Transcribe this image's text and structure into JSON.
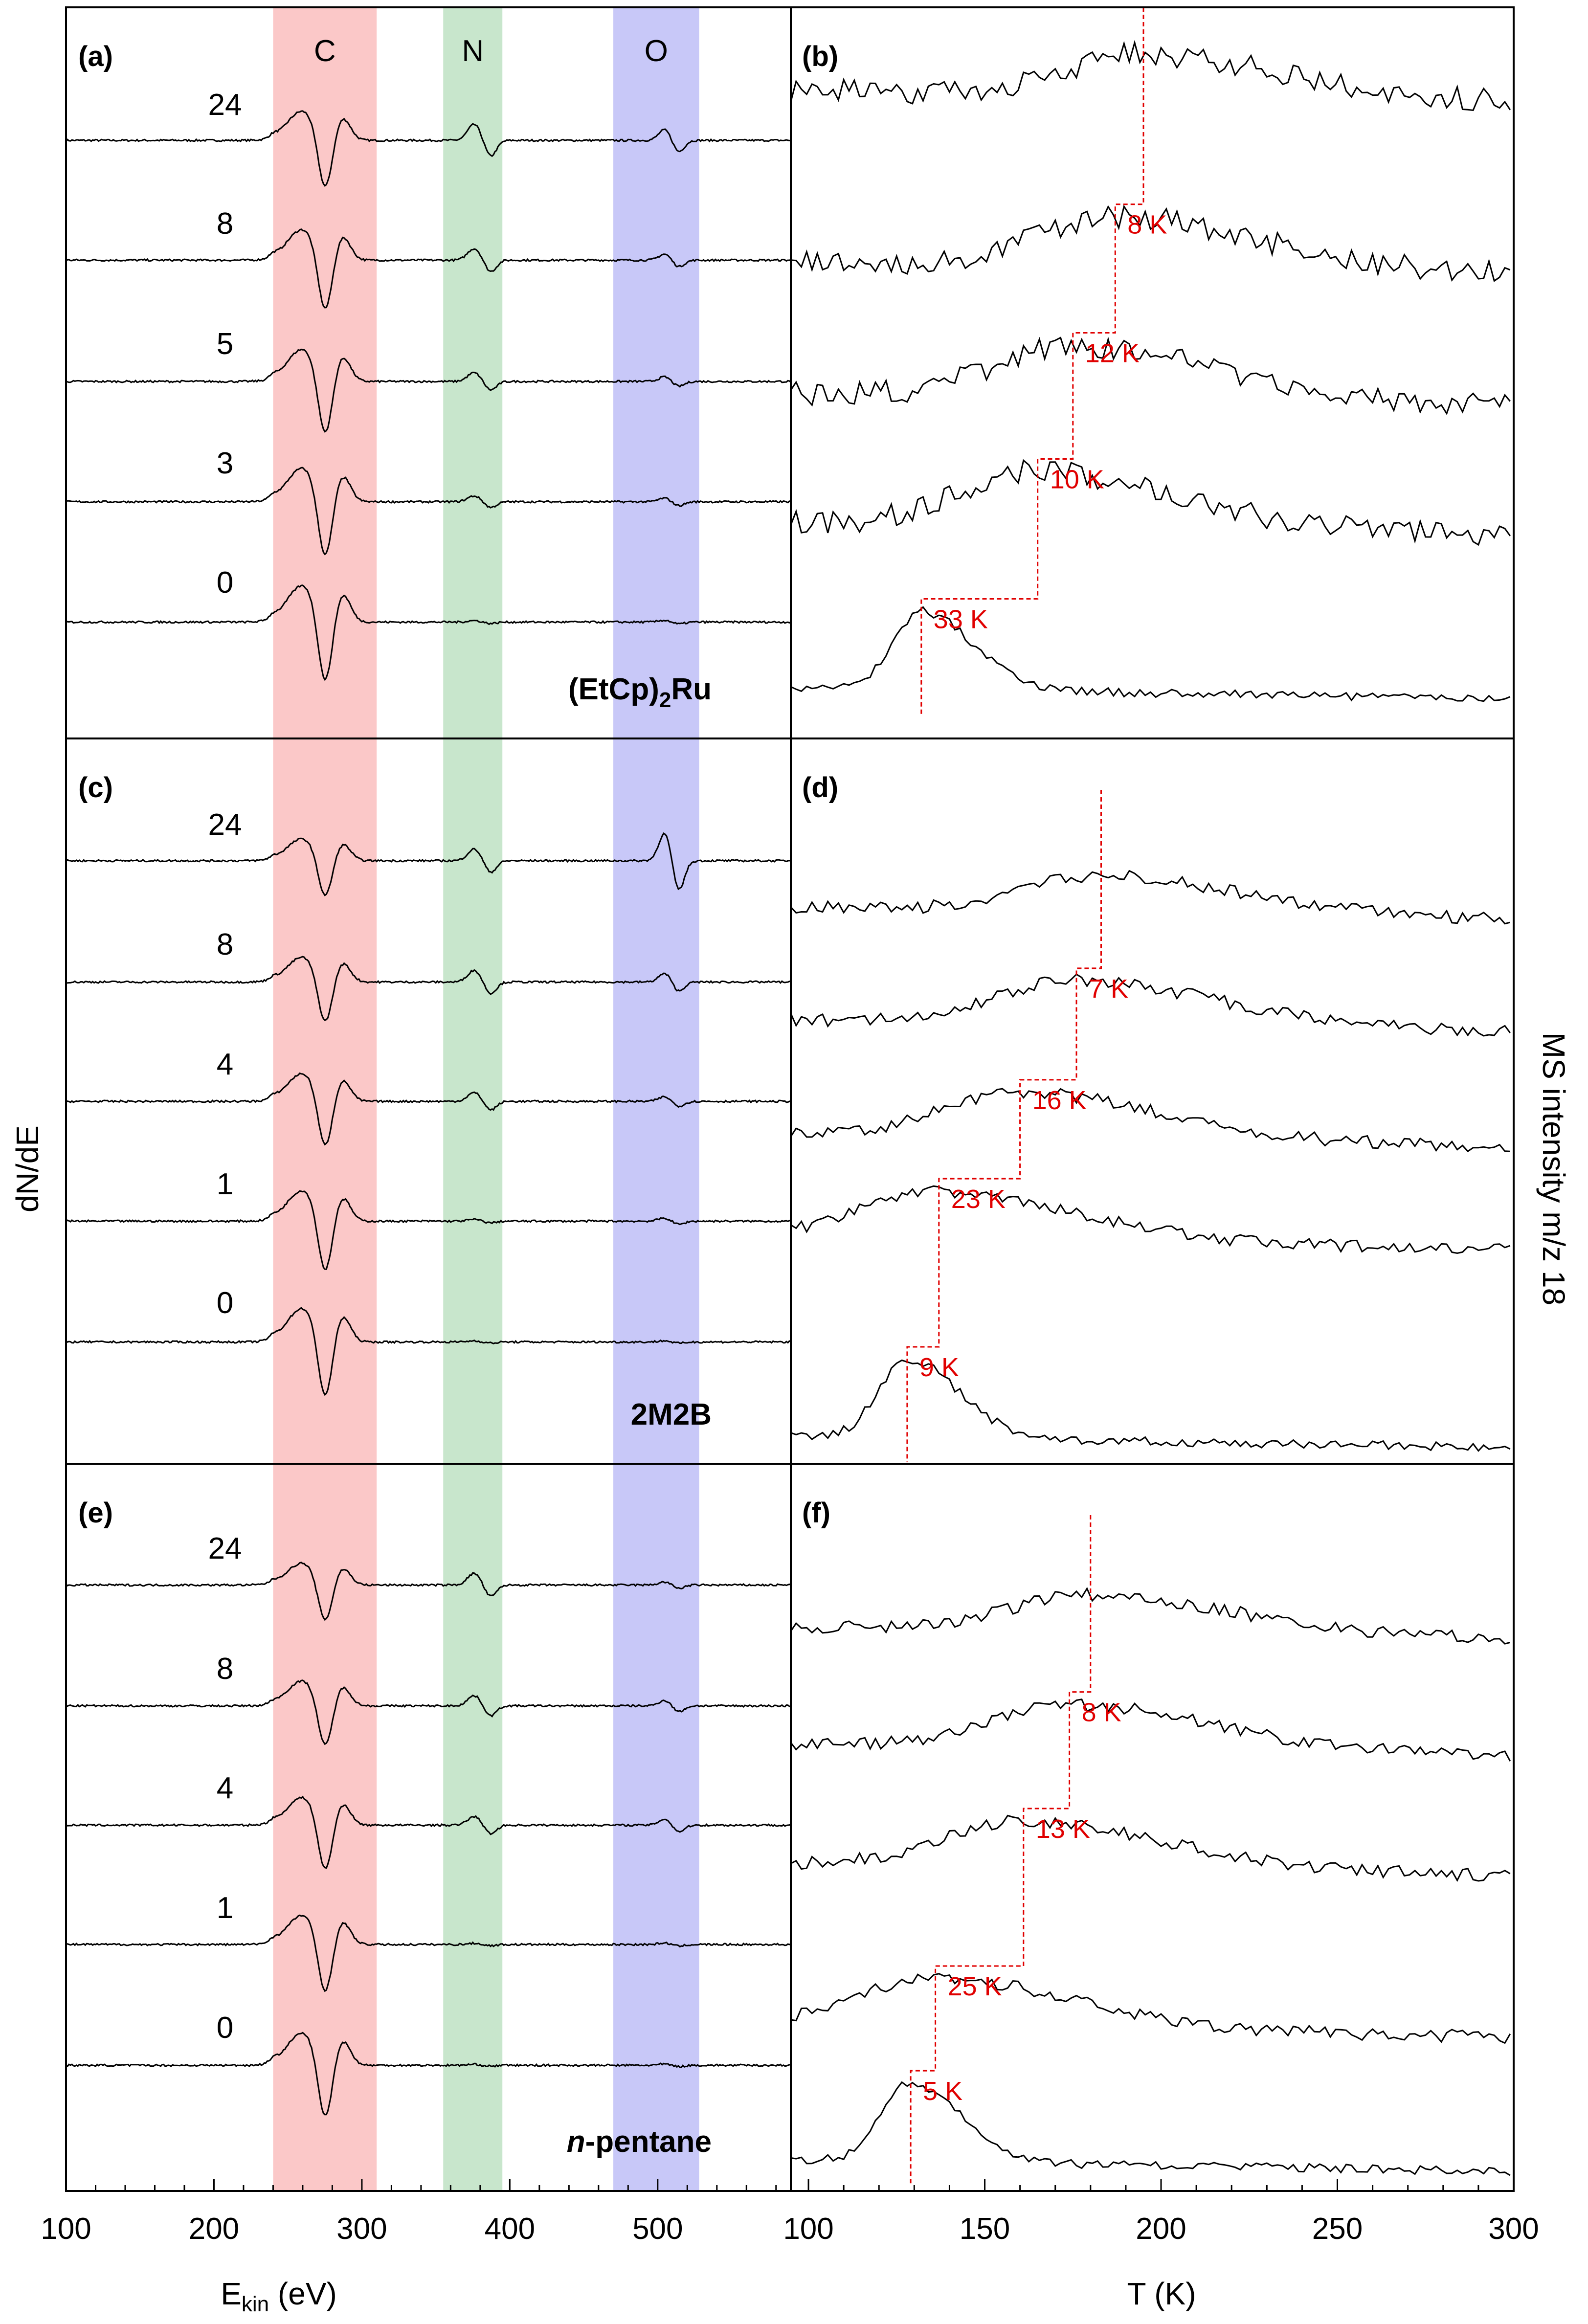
{
  "chart_data": {
    "type": "line",
    "shared_x_axes": {
      "left": {
        "label": "E",
        "label_sub": "kin",
        "label_unit": " (eV)",
        "xlim": [
          100,
          590
        ],
        "ticks": [
          "100",
          "200",
          "300",
          "400",
          "500"
        ]
      },
      "right": {
        "label": "T (K)",
        "xlim": [
          95,
          300
        ],
        "ticks": [
          "100",
          "150",
          "200",
          "250",
          "300"
        ]
      }
    },
    "ylabel_left": "dN/dE",
    "ylabel_right": "MS intensity m/z 18",
    "bands": [
      {
        "name": "C",
        "from": 240,
        "to": 310,
        "color": "#fbc8c8"
      },
      {
        "name": "N",
        "from": 355,
        "to": 395,
        "color": "#c8e6cc"
      },
      {
        "name": "O",
        "from": 470,
        "to": 528,
        "color": "#c8c8f8"
      }
    ],
    "aes_panels": [
      {
        "label": "(a)",
        "molecule": "(EtCp)",
        "molecule_sub": "2",
        "molecule_tail": "Ru",
        "cycles": [
          {
            "cycle": "24",
            "C": 1.0,
            "N": 0.55,
            "O": 0.35
          },
          {
            "cycle": "8",
            "C": 1.05,
            "N": 0.4,
            "O": 0.2
          },
          {
            "cycle": "5",
            "C": 1.1,
            "N": 0.3,
            "O": 0.15
          },
          {
            "cycle": "3",
            "C": 1.15,
            "N": 0.2,
            "O": 0.12
          },
          {
            "cycle": "0",
            "C": 1.25,
            "N": 0.05,
            "O": 0.06
          }
        ]
      },
      {
        "label": "(c)",
        "molecule": "2M2B",
        "molecule_sub": "",
        "molecule_tail": "",
        "cycles": [
          {
            "cycle": "24",
            "C": 0.75,
            "N": 0.4,
            "O": 0.9
          },
          {
            "cycle": "8",
            "C": 0.85,
            "N": 0.4,
            "O": 0.28
          },
          {
            "cycle": "4",
            "C": 0.95,
            "N": 0.3,
            "O": 0.15
          },
          {
            "cycle": "1",
            "C": 1.05,
            "N": 0.06,
            "O": 0.1
          },
          {
            "cycle": "0",
            "C": 1.15,
            "N": 0.04,
            "O": 0.04
          }
        ]
      },
      {
        "label": "(e)",
        "molecule": "n",
        "molecule_sub": "",
        "molecule_tail": "-pentane",
        "cycles": [
          {
            "cycle": "24",
            "C": 0.75,
            "N": 0.4,
            "O": 0.1
          },
          {
            "cycle": "8",
            "C": 0.85,
            "N": 0.35,
            "O": 0.18
          },
          {
            "cycle": "4",
            "C": 0.95,
            "N": 0.3,
            "O": 0.2
          },
          {
            "cycle": "1",
            "C": 1.0,
            "N": 0.04,
            "O": 0.05
          },
          {
            "cycle": "0",
            "C": 1.1,
            "N": 0.03,
            "O": 0.04
          }
        ]
      }
    ],
    "tpd_panels": [
      {
        "label": "(b)",
        "peaks": [
          195,
          187,
          175,
          165,
          132
        ],
        "shifts": [
          "8 K",
          "12 K",
          "10 K",
          "33 K"
        ]
      },
      {
        "label": "(d)",
        "peaks": [
          183,
          176,
          160,
          137,
          128
        ],
        "shifts": [
          "7 K",
          "16 K",
          "23 K",
          "9 K"
        ]
      },
      {
        "label": "(f)",
        "peaks": [
          180,
          174,
          161,
          136,
          129
        ],
        "shifts": [
          "8 K",
          "13 K",
          "25 K",
          "5 K"
        ]
      }
    ]
  }
}
